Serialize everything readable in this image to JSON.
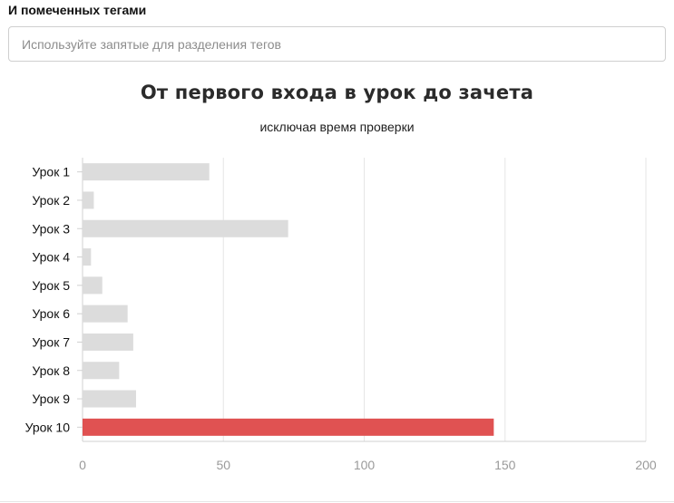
{
  "filter": {
    "label": "И помеченных тегами",
    "placeholder": "Используйте запятые для разделения тегов"
  },
  "chart_data": {
    "type": "bar",
    "orientation": "horizontal",
    "title": "От первого входа в урок до зачета",
    "subtitle": "исключая время проверки",
    "categories": [
      "Урок 1",
      "Урок 2",
      "Урок 3",
      "Урок 4",
      "Урок 5",
      "Урок 6",
      "Урок 7",
      "Урок 8",
      "Урок 9",
      "Урок 10"
    ],
    "values": [
      45,
      4,
      73,
      3,
      7,
      16,
      18,
      13,
      19,
      146
    ],
    "highlight_index": 9,
    "xlim": [
      0,
      200
    ],
    "xticks": [
      0,
      50,
      100,
      150,
      200
    ],
    "grid": true,
    "colors": {
      "bar": "#dcdcdc",
      "highlight": "#e05252",
      "grid": "#e6e6e6",
      "axis": "#d0d0d0",
      "tick_text": "#9a9a9a",
      "category_text": "#111111"
    }
  }
}
